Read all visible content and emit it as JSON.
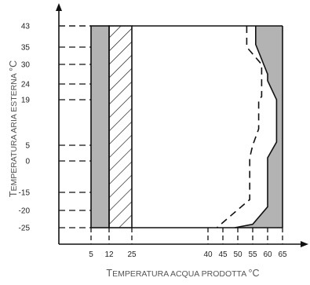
{
  "chart_data": {
    "type": "area",
    "xlabel": {
      "first": "T",
      "rest": "EMPERATURA ACQUA PRODOTTA",
      "unit": "°C"
    },
    "ylabel": {
      "first": "T",
      "rest": "EMPERATURA ARIA ESTERNA",
      "unit": "°C"
    },
    "x_ticks": [
      5,
      12,
      25,
      40,
      45,
      50,
      55,
      60,
      65
    ],
    "y_ticks": [
      43,
      35,
      30,
      24,
      19,
      5,
      0,
      -15,
      -20,
      -25
    ],
    "y_range": [
      -25,
      43
    ],
    "regions": {
      "left_gray_band": {
        "x": [
          5,
          12
        ],
        "fill": "#b3b3b3"
      },
      "hatched_band": {
        "x": [
          12,
          25
        ],
        "pattern": "diagonal"
      },
      "right_gray_area": [
        [
          65,
          43
        ],
        [
          56,
          43
        ],
        [
          56,
          36
        ],
        [
          60,
          26
        ],
        [
          60,
          19
        ],
        [
          65,
          19
        ]
      ],
      "right_gray_area_lower": [
        [
          65,
          5
        ],
        [
          60,
          0
        ],
        [
          60,
          -19
        ],
        [
          55,
          -25
        ],
        [
          65,
          -25
        ]
      ]
    },
    "boundaries": {
      "long_dash": [
        [
          53,
          43
        ],
        [
          53,
          35
        ],
        [
          54,
          34
        ],
        [
          58,
          30
        ],
        [
          58,
          20
        ],
        [
          57,
          19
        ],
        [
          57,
          10
        ],
        [
          55,
          5
        ],
        [
          54,
          1
        ],
        [
          54,
          -17
        ],
        [
          47,
          -22
        ],
        [
          43,
          -25
        ]
      ],
      "solid_right": [
        [
          56,
          43
        ],
        [
          56,
          36
        ],
        [
          60,
          27
        ],
        [
          60,
          25
        ],
        [
          63,
          19
        ],
        [
          63,
          6
        ],
        [
          60,
          1
        ],
        [
          60,
          -19
        ],
        [
          55,
          -24
        ],
        [
          49,
          -25
        ]
      ]
    },
    "colors": {
      "gray_fill": "#b3b3b3",
      "line": "#111111"
    }
  }
}
